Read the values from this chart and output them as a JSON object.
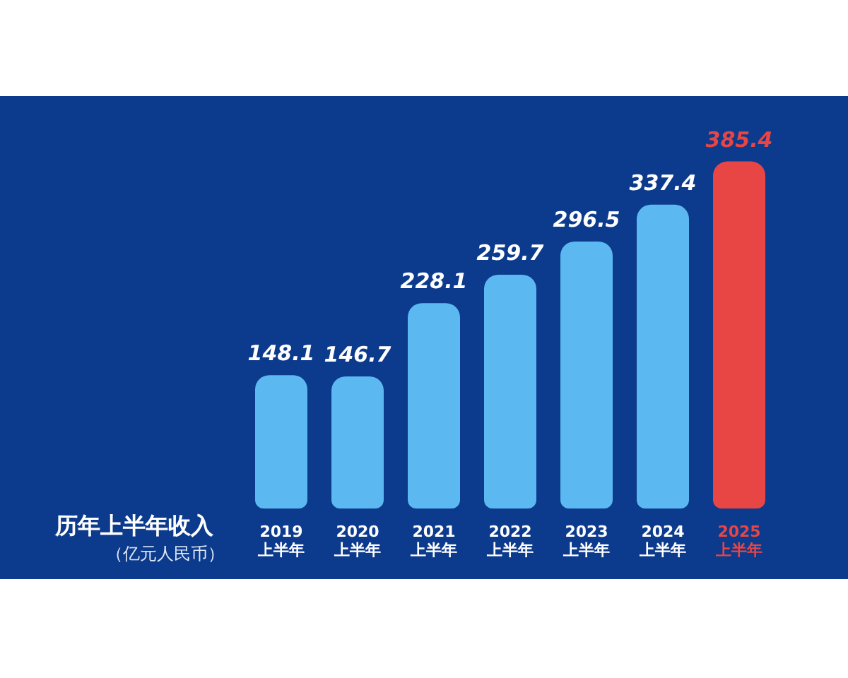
{
  "chart_data": {
    "type": "bar",
    "title": "历年上半年收入",
    "subtitle": "（亿元人民币）",
    "categories": [
      "2019\n上半年",
      "2020\n上半年",
      "2021\n上半年",
      "2022\n上半年",
      "2023\n上半年",
      "2024\n上半年",
      "2025\n上半年"
    ],
    "values": [
      148.1,
      146.7,
      228.1,
      259.7,
      296.5,
      337.4,
      385.4
    ],
    "colors": [
      "#5bb8f0",
      "#5bb8f0",
      "#5bb8f0",
      "#5bb8f0",
      "#5bb8f0",
      "#5bb8f0",
      "#e84545"
    ],
    "data_labels": true
  }
}
